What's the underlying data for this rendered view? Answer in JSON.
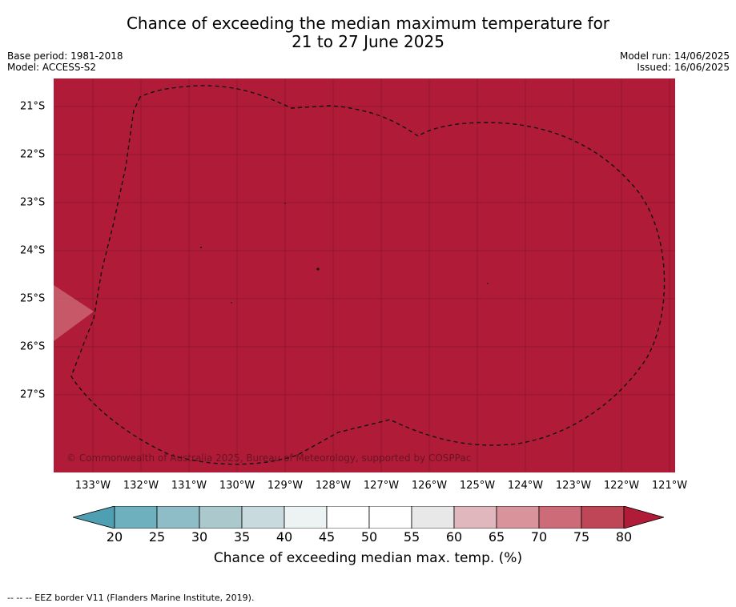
{
  "header": {
    "title_line1": "Chance of exceeding the median maximum temperature for",
    "title_line2": "21 to 27 June 2025",
    "base_period": "Base period: 1981-2018",
    "model": "Model: ACCESS-S2",
    "model_run": "Model run: 14/06/2025",
    "issued": "Issued: 16/06/2025"
  },
  "map": {
    "fill_color": "#b01c38",
    "lat_labels": [
      "21°S",
      "22°S",
      "23°S",
      "24°S",
      "25°S",
      "26°S",
      "27°S"
    ],
    "lon_labels": [
      "133°W",
      "132°W",
      "131°W",
      "130°W",
      "129°W",
      "128°W",
      "127°W",
      "126°W",
      "125°W",
      "124°W",
      "123°W",
      "122°W",
      "121°W"
    ],
    "copyright": "© Commonwealth of Australia 2025, Bureau of Meteorology, supported by COSPPac"
  },
  "colorbar": {
    "ticks": [
      "20",
      "25",
      "30",
      "35",
      "40",
      "45",
      "50",
      "55",
      "60",
      "65",
      "70",
      "75",
      "80"
    ],
    "colors": [
      "#4e9fb1",
      "#6fb0bf",
      "#8ebcc7",
      "#abc8cd",
      "#c9dade",
      "#edf2f3",
      "#ffffff",
      "#ffffff",
      "#e8e8e8",
      "#e0b7bc",
      "#d9949b",
      "#cd6c78",
      "#be4656",
      "#b01c38"
    ],
    "label": "Chance of exceeding median max. temp. (%)"
  },
  "footer": {
    "legend_text": "-- -- -- EEZ border V11 (Flanders Marine Institute, 2019)."
  }
}
